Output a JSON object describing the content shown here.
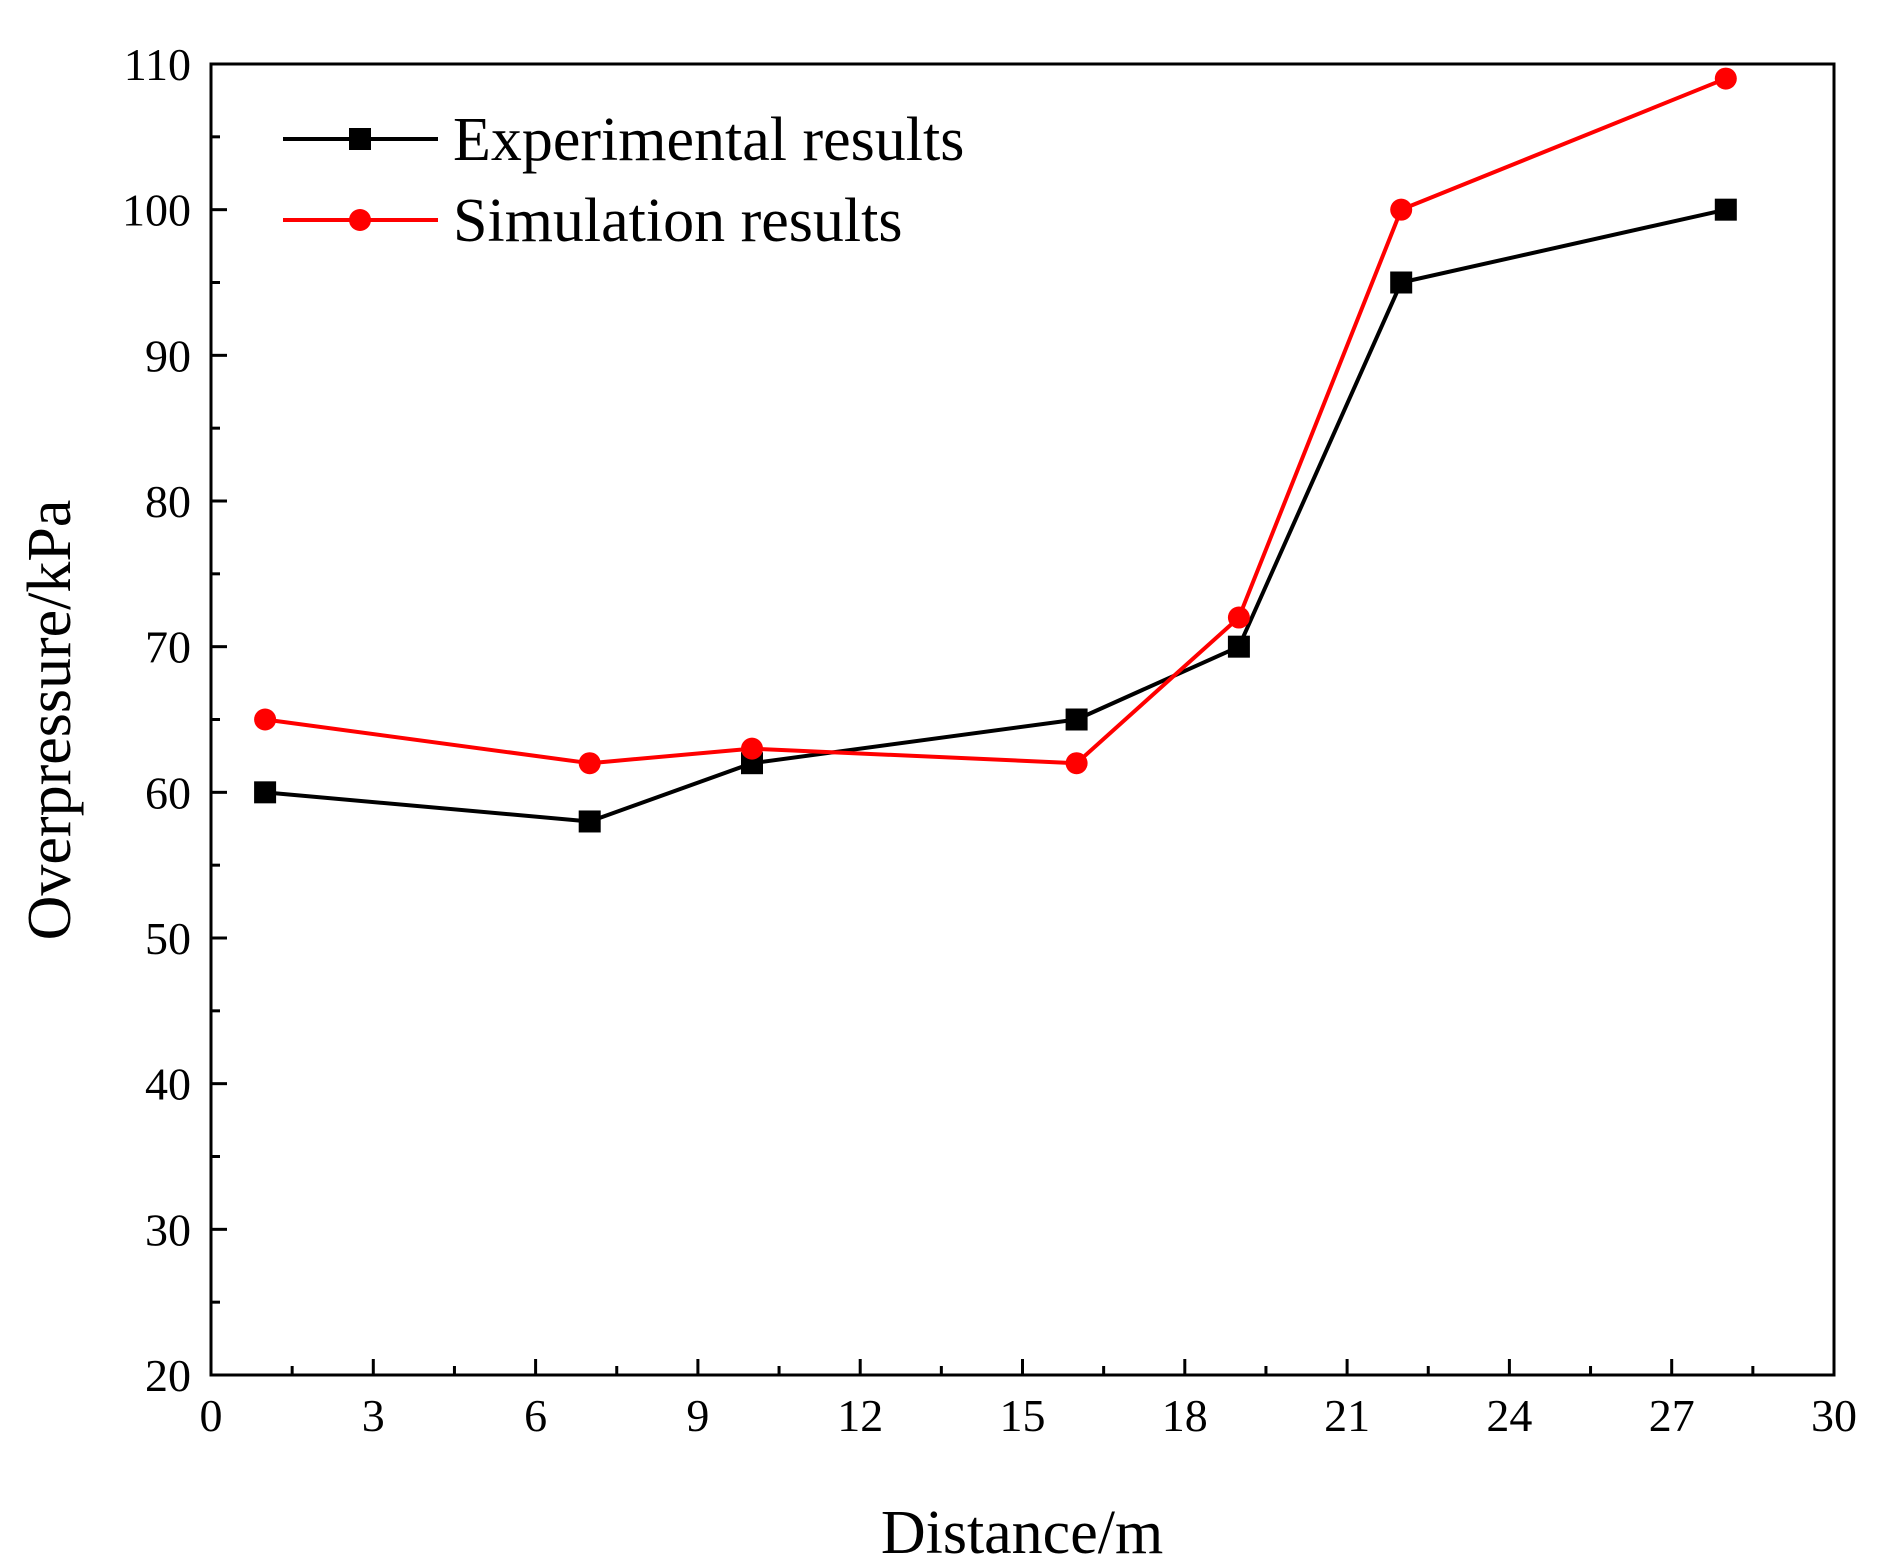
{
  "chart_data": {
    "type": "line",
    "title": "",
    "xlabel": "Distance/m",
    "ylabel": "Overpressure/kPa",
    "xlim": [
      0,
      30
    ],
    "ylim": [
      20,
      110
    ],
    "xticks": [
      0,
      3,
      6,
      9,
      12,
      15,
      18,
      21,
      24,
      27,
      30
    ],
    "yticks": [
      20,
      30,
      40,
      50,
      60,
      70,
      80,
      90,
      100,
      110
    ],
    "grid": false,
    "legend_position": "top-left",
    "series": [
      {
        "name": "Experimental results",
        "color": "#000000",
        "marker": "square",
        "x": [
          1,
          7,
          10,
          16,
          19,
          22,
          28
        ],
        "y": [
          60,
          58,
          62,
          65,
          70,
          95,
          100
        ]
      },
      {
        "name": "Simulation results",
        "color": "#ff0000",
        "marker": "circle",
        "x": [
          1,
          7,
          10,
          16,
          19,
          22,
          28
        ],
        "y": [
          65,
          62,
          63,
          62,
          72,
          100,
          109
        ]
      }
    ]
  }
}
